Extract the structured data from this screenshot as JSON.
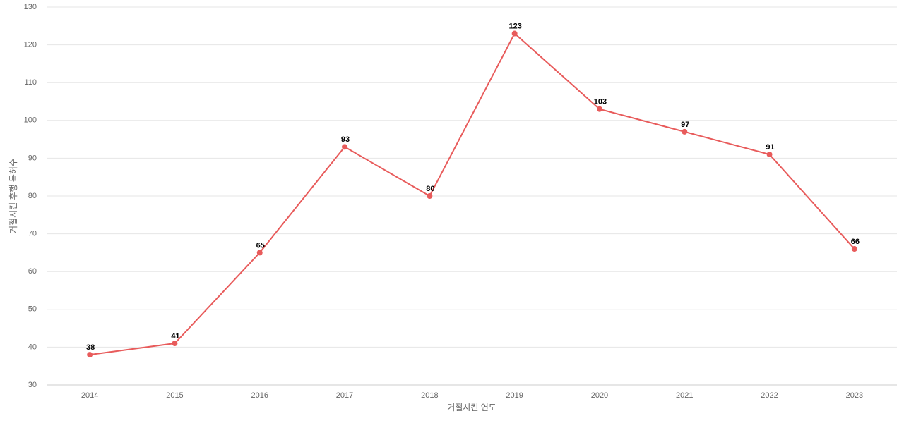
{
  "chart_data": {
    "type": "line",
    "x_label": "거절시킨 연도",
    "y_label": "거절시킨 후행 특허수",
    "categories": [
      "2014",
      "2015",
      "2016",
      "2017",
      "2018",
      "2019",
      "2020",
      "2021",
      "2022",
      "2023"
    ],
    "series": [
      {
        "name": "거절시킨 후행 특허수",
        "color": "#e85b5b",
        "values": [
          38,
          41,
          65,
          93,
          80,
          123,
          103,
          97,
          91,
          66
        ]
      }
    ],
    "ylim": [
      30,
      130
    ],
    "yticks": [
      30,
      40,
      50,
      60,
      70,
      80,
      90,
      100,
      110,
      120,
      130
    ],
    "grid": true
  }
}
